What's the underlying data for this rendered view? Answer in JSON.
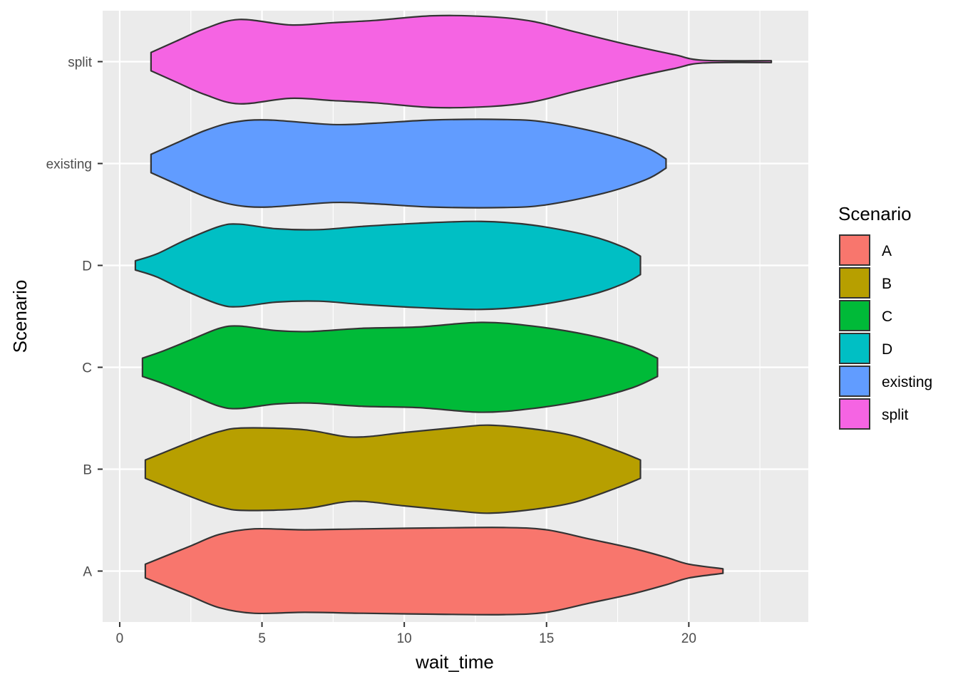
{
  "chart_data": {
    "type": "violin",
    "orientation": "horizontal",
    "xlabel": "wait_time",
    "ylabel": "Scenario",
    "xlim": [
      -0.6,
      24.2
    ],
    "x_ticks": [
      0,
      5,
      10,
      15,
      20
    ],
    "grid": true,
    "legend": {
      "title": "Scenario",
      "position": "right",
      "entries": [
        "A",
        "B",
        "C",
        "D",
        "existing",
        "split"
      ]
    },
    "categories": [
      "A",
      "B",
      "C",
      "D",
      "existing",
      "split"
    ],
    "series": [
      {
        "name": "A",
        "color": "#F8766D",
        "outline": [
          [
            0.9,
            0.15
          ],
          [
            1.5,
            0.3
          ],
          [
            2.5,
            0.55
          ],
          [
            3.5,
            0.8
          ],
          [
            4.7,
            0.92
          ],
          [
            6.5,
            0.9
          ],
          [
            8.5,
            0.92
          ],
          [
            11,
            0.94
          ],
          [
            13.5,
            0.95
          ],
          [
            15,
            0.9
          ],
          [
            16.5,
            0.7
          ],
          [
            18,
            0.5
          ],
          [
            19.2,
            0.3
          ],
          [
            20,
            0.15
          ],
          [
            21.2,
            0.05
          ]
        ]
      },
      {
        "name": "B",
        "color": "#B79F00",
        "outline": [
          [
            0.9,
            0.2
          ],
          [
            1.5,
            0.35
          ],
          [
            2.5,
            0.6
          ],
          [
            3.5,
            0.82
          ],
          [
            4.4,
            0.9
          ],
          [
            6.5,
            0.86
          ],
          [
            8.2,
            0.7
          ],
          [
            10,
            0.8
          ],
          [
            12,
            0.92
          ],
          [
            13,
            0.96
          ],
          [
            14.5,
            0.88
          ],
          [
            16,
            0.72
          ],
          [
            17.5,
            0.4
          ],
          [
            18.3,
            0.2
          ]
        ]
      },
      {
        "name": "C",
        "color": "#00BA38",
        "outline": [
          [
            0.8,
            0.2
          ],
          [
            1.5,
            0.35
          ],
          [
            2.5,
            0.6
          ],
          [
            3.5,
            0.85
          ],
          [
            4.2,
            0.9
          ],
          [
            5.5,
            0.8
          ],
          [
            6.7,
            0.78
          ],
          [
            8.5,
            0.85
          ],
          [
            10.5,
            0.88
          ],
          [
            12.7,
            0.98
          ],
          [
            14.5,
            0.9
          ],
          [
            16.5,
            0.7
          ],
          [
            18,
            0.45
          ],
          [
            18.9,
            0.2
          ]
        ]
      },
      {
        "name": "D",
        "color": "#00BFC4",
        "outline": [
          [
            0.55,
            0.1
          ],
          [
            1.3,
            0.25
          ],
          [
            2.3,
            0.55
          ],
          [
            3.5,
            0.85
          ],
          [
            4.2,
            0.9
          ],
          [
            5.5,
            0.8
          ],
          [
            7,
            0.78
          ],
          [
            8.5,
            0.85
          ],
          [
            10.5,
            0.92
          ],
          [
            12.7,
            0.96
          ],
          [
            14.5,
            0.88
          ],
          [
            16.5,
            0.65
          ],
          [
            17.7,
            0.4
          ],
          [
            18.3,
            0.2
          ]
        ]
      },
      {
        "name": "existing",
        "color": "#619CFF",
        "outline": [
          [
            1.1,
            0.2
          ],
          [
            2,
            0.45
          ],
          [
            3,
            0.72
          ],
          [
            4,
            0.9
          ],
          [
            5.2,
            0.95
          ],
          [
            7.5,
            0.85
          ],
          [
            9,
            0.88
          ],
          [
            11,
            0.95
          ],
          [
            13.5,
            0.96
          ],
          [
            15,
            0.9
          ],
          [
            17,
            0.65
          ],
          [
            18.5,
            0.35
          ],
          [
            19.2,
            0.1
          ]
        ]
      },
      {
        "name": "split",
        "color": "#F564E3",
        "outline": [
          [
            1.1,
            0.2
          ],
          [
            2,
            0.45
          ],
          [
            3,
            0.72
          ],
          [
            4.2,
            0.92
          ],
          [
            6,
            0.8
          ],
          [
            7.5,
            0.85
          ],
          [
            9,
            0.9
          ],
          [
            11,
            1.0
          ],
          [
            13,
            0.98
          ],
          [
            14.5,
            0.88
          ],
          [
            16,
            0.65
          ],
          [
            18,
            0.35
          ],
          [
            19.5,
            0.15
          ],
          [
            20.5,
            0.03
          ],
          [
            22.9,
            0.02
          ]
        ]
      }
    ]
  }
}
